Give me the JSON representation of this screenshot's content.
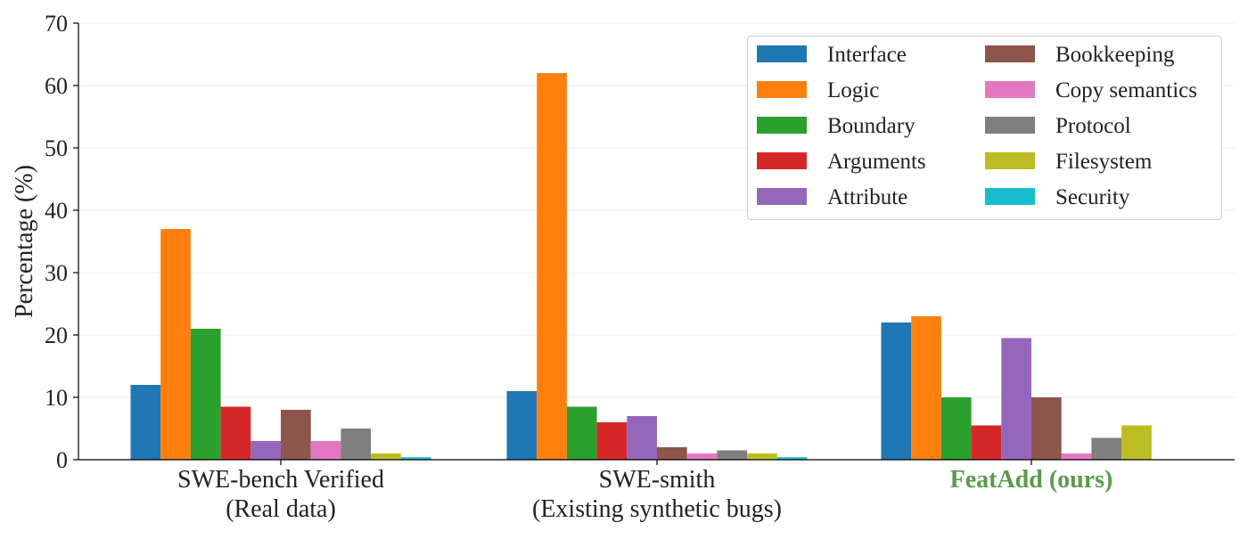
{
  "chart_data": {
    "type": "bar",
    "title": "",
    "xlabel": "",
    "ylabel": "Percentage (%)",
    "ylim": [
      0,
      70
    ],
    "yticks": [
      0,
      10,
      20,
      30,
      40,
      50,
      60,
      70
    ],
    "grid": "horizontal",
    "legend_placement": "top-right",
    "categories": [
      {
        "line1": "SWE-bench Verified",
        "line2": "(Real data)",
        "color": "#222222",
        "bold": false
      },
      {
        "line1": "SWE-smith",
        "line2": "(Existing synthetic bugs)",
        "color": "#222222",
        "bold": false
      },
      {
        "line1": "FeatAdd (ours)",
        "line2": "",
        "color": "#5b9a4a",
        "bold": true
      }
    ],
    "series": [
      {
        "name": "Interface",
        "color": "#1f77b4",
        "values": [
          12,
          11,
          22
        ]
      },
      {
        "name": "Logic",
        "color": "#ff7f0e",
        "values": [
          37,
          62,
          23
        ]
      },
      {
        "name": "Boundary",
        "color": "#2ca02c",
        "values": [
          21,
          8.5,
          10
        ]
      },
      {
        "name": "Arguments",
        "color": "#d62728",
        "values": [
          8.5,
          6,
          5.5
        ]
      },
      {
        "name": "Attribute",
        "color": "#9467bd",
        "values": [
          3,
          7,
          19.5
        ]
      },
      {
        "name": "Bookkeeping",
        "color": "#8c564b",
        "values": [
          8,
          2,
          10
        ]
      },
      {
        "name": "Copy semantics",
        "color": "#e377c2",
        "values": [
          3,
          1,
          1
        ]
      },
      {
        "name": "Protocol",
        "color": "#7f7f7f",
        "values": [
          5,
          1.5,
          3.5
        ]
      },
      {
        "name": "Filesystem",
        "color": "#bcbd22",
        "values": [
          1,
          1,
          5.5
        ]
      },
      {
        "name": "Security",
        "color": "#17becf",
        "values": [
          0.4,
          0.4,
          0
        ]
      }
    ]
  }
}
